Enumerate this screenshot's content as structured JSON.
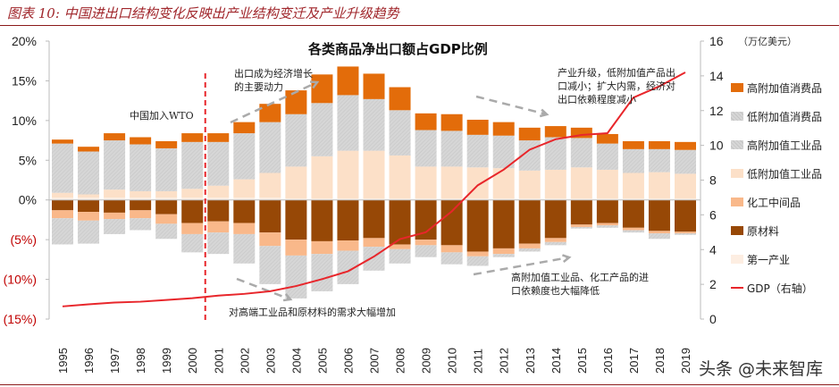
{
  "header": {
    "title": "图表 10:  中国进出口结构变化反映出产业结构变迁及产业升级趋势"
  },
  "watermark": "头条 @未来智库",
  "chart_data": {
    "type": "bar",
    "title": "各类商品净出口额占GDP比例",
    "categories": [
      "1995",
      "1996",
      "1997",
      "1998",
      "1999",
      "2000",
      "2001",
      "2002",
      "2003",
      "2004",
      "2005",
      "2006",
      "2007",
      "2008",
      "2009",
      "2010",
      "2011",
      "2012",
      "2013",
      "2014",
      "2015",
      "2016",
      "2017",
      "2018",
      "2019"
    ],
    "left_axis": {
      "ylim": [
        -15,
        20
      ],
      "ticks": [
        "(15%)",
        "(10%)",
        "(5%)",
        "0%",
        "5%",
        "10%",
        "15%",
        "20%"
      ],
      "tick_values": [
        -15,
        -10,
        -5,
        0,
        5,
        10,
        15,
        20
      ]
    },
    "right_axis": {
      "unit": "（万亿美元）",
      "ylim": [
        0,
        16
      ],
      "ticks": [
        "0",
        "2",
        "4",
        "6",
        "8",
        "10",
        "12",
        "14",
        "16"
      ]
    },
    "series": [
      {
        "name": "高附加值消费品",
        "axis": "left",
        "color": "#E36C0A",
        "values": [
          0.5,
          0.6,
          0.9,
          0.9,
          0.9,
          1.1,
          1.1,
          1.4,
          2.3,
          3.0,
          3.6,
          3.6,
          3.2,
          2.9,
          2.1,
          2.1,
          1.9,
          1.7,
          1.6,
          1.4,
          1.3,
          1.2,
          1.0,
          1.0,
          1.0
        ]
      },
      {
        "name": "低附加值消费品",
        "axis": "left",
        "color": "#D9D9D9",
        "values": [
          6.2,
          5.4,
          6.2,
          5.9,
          5.4,
          5.9,
          5.5,
          5.8,
          6.4,
          6.6,
          6.7,
          7.0,
          6.5,
          5.7,
          4.6,
          4.5,
          4.1,
          4.1,
          3.8,
          4.1,
          3.7,
          3.3,
          3.0,
          2.9,
          3.0
        ]
      },
      {
        "name": "高附加值工业品",
        "axis": "left",
        "color": "#CFCFCF",
        "values": [
          -3.3,
          -2.9,
          -1.9,
          -1.5,
          -1.9,
          -2.3,
          -2.7,
          -3.7,
          -4.8,
          -5.4,
          -4.7,
          -4.2,
          -3.0,
          -1.8,
          -1.5,
          -1.5,
          -1.2,
          -0.4,
          -0.4,
          -0.4,
          -0.2,
          -0.3,
          -0.3,
          -0.7,
          -0.2
        ]
      },
      {
        "name": "低附加值工业品",
        "axis": "left",
        "color": "#FCE0C8",
        "values": [
          0.6,
          0.4,
          1.0,
          0.8,
          0.8,
          1.1,
          1.5,
          2.3,
          3.1,
          4.0,
          5.3,
          6.0,
          6.0,
          5.4,
          4.0,
          4.0,
          3.9,
          3.8,
          3.5,
          3.6,
          3.9,
          3.6,
          3.2,
          3.3,
          3.1
        ]
      },
      {
        "name": "化工中间品",
        "axis": "left",
        "color": "#F9B88A",
        "values": [
          -1.0,
          -1.1,
          -0.8,
          -1.0,
          -1.2,
          -1.4,
          -1.4,
          -1.4,
          -1.7,
          -2.0,
          -1.6,
          -1.3,
          -1.1,
          -0.6,
          -0.7,
          -0.9,
          -0.6,
          -0.7,
          -0.6,
          -0.5,
          -0.3,
          -0.3,
          -0.3,
          -0.3,
          -0.2
        ]
      },
      {
        "name": "原材料",
        "axis": "left",
        "color": "#974806",
        "values": [
          -1.3,
          -1.5,
          -1.6,
          -1.3,
          -1.8,
          -2.9,
          -2.7,
          -2.9,
          -4.1,
          -5.0,
          -5.2,
          -5.1,
          -4.8,
          -5.6,
          -5.0,
          -5.7,
          -6.5,
          -6.1,
          -5.5,
          -4.8,
          -3.1,
          -2.9,
          -3.5,
          -3.9,
          -4.0
        ]
      },
      {
        "name": "第一产业",
        "axis": "left",
        "color": "#FDEEE2",
        "values": [
          0.3,
          0.3,
          0.3,
          0.3,
          0.3,
          0.3,
          0.3,
          0.3,
          0.3,
          0.2,
          0.2,
          0.2,
          0.2,
          0.2,
          0.2,
          0.2,
          0.2,
          0.2,
          0.2,
          0.2,
          0.2,
          0.2,
          0.2,
          0.2,
          0.2
        ]
      },
      {
        "name": "GDP（右轴）",
        "axis": "right",
        "type": "line",
        "color": "#E8262B",
        "values": [
          0.73,
          0.85,
          0.95,
          1.0,
          1.1,
          1.2,
          1.35,
          1.45,
          1.6,
          1.9,
          2.3,
          2.75,
          3.6,
          4.6,
          5.0,
          6.2,
          7.7,
          8.6,
          9.75,
          10.35,
          10.6,
          10.7,
          12.75,
          13.4,
          14.2
        ]
      }
    ],
    "marker": {
      "label_year": "2001",
      "style": "red-dashed-vertical"
    },
    "annotations": {
      "wto": "中国加入WTO",
      "export_driver": [
        "出口成为经济增长",
        "的主要动力"
      ],
      "demand": "对高端工业品和原材料的需求大幅增加",
      "upgrade": [
        "产业升级，低附加值产品出",
        "口减小；扩大内需，经济对",
        "出口依赖程度减小"
      ],
      "import_dep": [
        "高附加值工业品、化工产品的进",
        "口依赖度也大幅降低"
      ]
    },
    "legend_position": "right"
  }
}
